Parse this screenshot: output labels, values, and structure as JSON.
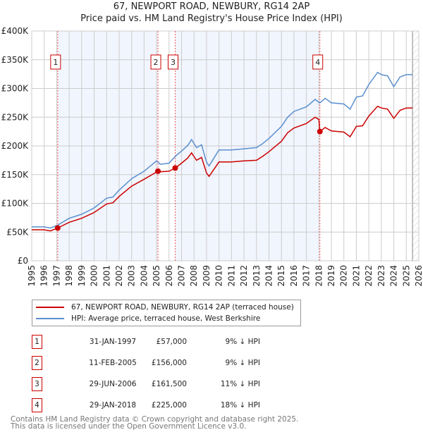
{
  "chart_data": {
    "type": "line",
    "title": "67, NEWPORT ROAD, NEWBURY, RG14 2AP",
    "subtitle": "Price paid vs. HM Land Registry's House Price Index (HPI)",
    "xlim": [
      1995,
      2026
    ],
    "ylim": [
      0,
      400000
    ],
    "grid": true,
    "y_ticks": [
      0,
      50000,
      100000,
      150000,
      200000,
      250000,
      300000,
      350000,
      400000
    ],
    "y_tick_labels": [
      "£0",
      "£50K",
      "£100K",
      "£150K",
      "£200K",
      "£250K",
      "£300K",
      "£350K",
      "£400K"
    ],
    "x_ticks": [
      1995,
      1996,
      1997,
      1998,
      1999,
      2000,
      2001,
      2002,
      2003,
      2004,
      2005,
      2006,
      2007,
      2008,
      2009,
      2010,
      2011,
      2012,
      2013,
      2014,
      2015,
      2016,
      2017,
      2018,
      2019,
      2020,
      2021,
      2022,
      2023,
      2024,
      2025,
      2026
    ],
    "series": [
      {
        "name": "67, NEWPORT ROAD, NEWBURY, RG14 2AP (terraced house)",
        "color": "#cc0000",
        "x": [
          1995,
          1996,
          1996.5,
          1997.08,
          1998,
          1999,
          2000,
          2001,
          2001.5,
          2002,
          2003,
          2004,
          2005.11,
          2005.3,
          2006,
          2006.5,
          2007,
          2007.5,
          2007.8,
          2008.2,
          2008.6,
          2009.0,
          2009.2,
          2009.4,
          2010,
          2011,
          2012,
          2013.0,
          2013.5,
          2014,
          2015,
          2015.5,
          2016,
          2017,
          2017.7,
          2018.0,
          2018.08,
          2018.5,
          2019,
          2020,
          2020.5,
          2021,
          2021.5,
          2022,
          2022.7,
          2023,
          2023.5,
          2024,
          2024.5,
          2025,
          2025.5
        ],
        "values": [
          54000,
          54000,
          52000,
          57000,
          67000,
          74000,
          84000,
          99000,
          101000,
          112000,
          130000,
          142000,
          156000,
          155000,
          156000,
          161500,
          170000,
          179000,
          188000,
          175000,
          180000,
          153000,
          147000,
          153000,
          172000,
          172000,
          174000,
          175000,
          182000,
          190000,
          208000,
          223000,
          231000,
          239000,
          250000,
          246000,
          225000,
          232000,
          226000,
          224000,
          216000,
          234000,
          235000,
          252000,
          269000,
          266000,
          264000,
          248000,
          262000,
          266000,
          266000
        ]
      },
      {
        "name": "HPI: Average price, terraced house, West Berkshire",
        "color": "#5b8fd0",
        "x": [
          1995,
          1996,
          1996.5,
          1997.08,
          1998,
          1999,
          2000,
          2001,
          2001.5,
          2002,
          2003,
          2004,
          2005.0,
          2005.3,
          2006,
          2006.5,
          2007,
          2007.5,
          2007.8,
          2008.2,
          2008.6,
          2009.0,
          2009.2,
          2009.4,
          2010,
          2011,
          2012,
          2013.0,
          2013.5,
          2014,
          2015,
          2015.5,
          2016,
          2017,
          2017.7,
          2018.0,
          2018.08,
          2018.5,
          2019,
          2020,
          2020.5,
          2021,
          2021.5,
          2022,
          2022.7,
          2023,
          2023.5,
          2024,
          2024.5,
          2025,
          2025.5
        ],
        "values": [
          59000,
          59000,
          57000,
          62000,
          74000,
          81000,
          92000,
          109000,
          111000,
          123000,
          143000,
          156000,
          174000,
          168000,
          170000,
          182000,
          191000,
          201000,
          211000,
          197000,
          202000,
          172000,
          165000,
          172000,
          193000,
          193000,
          195000,
          197000,
          204000,
          213000,
          234000,
          250000,
          260000,
          268000,
          281000,
          276000,
          275000,
          283000,
          275000,
          273000,
          264000,
          285000,
          287000,
          307000,
          328000,
          324000,
          322000,
          303000,
          320000,
          324000,
          324000
        ]
      }
    ],
    "sales": [
      {
        "label": "1",
        "x": 1997.08,
        "value": 57000,
        "date": "31-JAN-1997",
        "price": "£57,000",
        "hpi": "9% ↓ HPI"
      },
      {
        "label": "2",
        "x": 2005.11,
        "value": 156000,
        "date": "11-FEB-2005",
        "price": "£156,000",
        "hpi": "9% ↓ HPI"
      },
      {
        "label": "3",
        "x": 2006.49,
        "value": 161500,
        "date": "29-JUN-2006",
        "price": "£161,500",
        "hpi": "11% ↓ HPI"
      },
      {
        "label": "4",
        "x": 2018.08,
        "value": 225000,
        "date": "29-JAN-2018",
        "price": "£225,000",
        "hpi": "18% ↓ HPI"
      }
    ],
    "shaded_ranges": [
      [
        1997.08,
        2005.11
      ],
      [
        2006.49,
        2018.08
      ]
    ],
    "forecast_hatch_from": 2025.5,
    "legend_placement": "below"
  },
  "footer": {
    "line1": "Contains HM Land Registry data © Crown copyright and database right 2025.",
    "line2": "This data is licensed under the Open Government Licence v3.0."
  }
}
